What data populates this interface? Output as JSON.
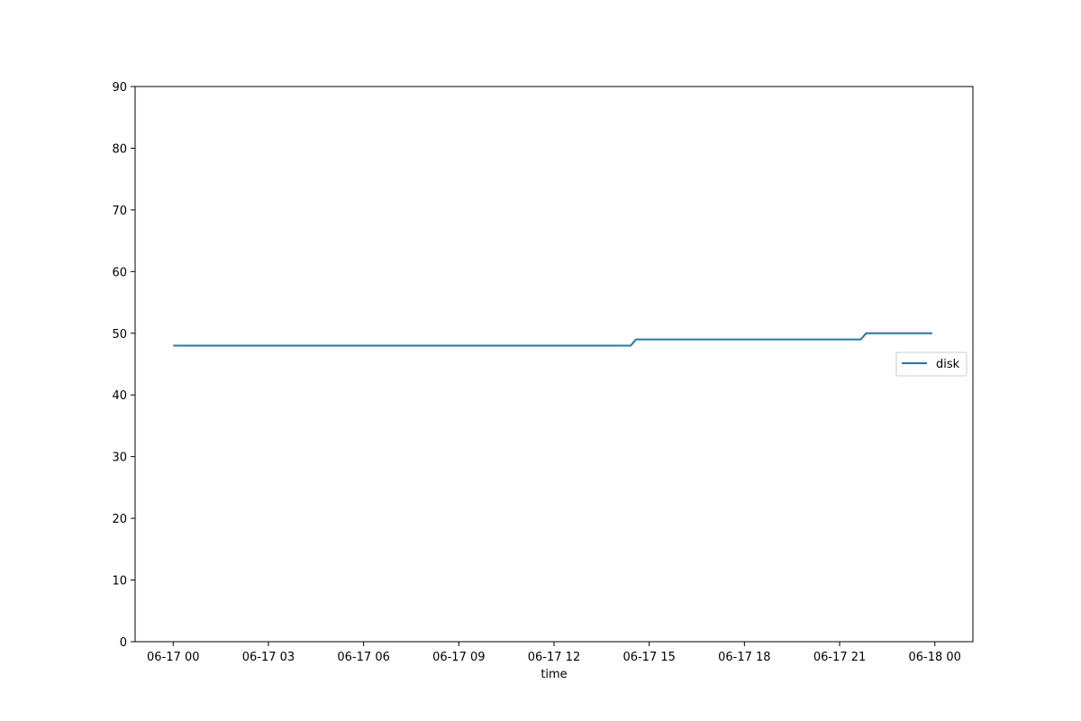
{
  "chart_data": {
    "type": "line",
    "title": "",
    "xlabel": "time",
    "ylabel": "",
    "x_ticks": [
      "06-17 00",
      "06-17 03",
      "06-17 06",
      "06-17 09",
      "06-17 12",
      "06-17 15",
      "06-17 18",
      "06-17 21",
      "06-18 00"
    ],
    "x_range": [
      "2023-06-16T22:48",
      "2023-06-18T01:12"
    ],
    "ylim": [
      0,
      90
    ],
    "y_ticks": [
      0,
      10,
      20,
      30,
      40,
      50,
      60,
      70,
      80,
      90
    ],
    "grid": false,
    "legend_position": "center-right",
    "series": [
      {
        "name": "disk",
        "color": "#1f77b4",
        "points": [
          {
            "x": "2023-06-17T00:00",
            "y": 48
          },
          {
            "x": "2023-06-17T14:25",
            "y": 48
          },
          {
            "x": "2023-06-17T14:35",
            "y": 49
          },
          {
            "x": "2023-06-17T21:40",
            "y": 49
          },
          {
            "x": "2023-06-17T21:50",
            "y": 50
          },
          {
            "x": "2023-06-17T23:55",
            "y": 50
          }
        ]
      }
    ]
  }
}
